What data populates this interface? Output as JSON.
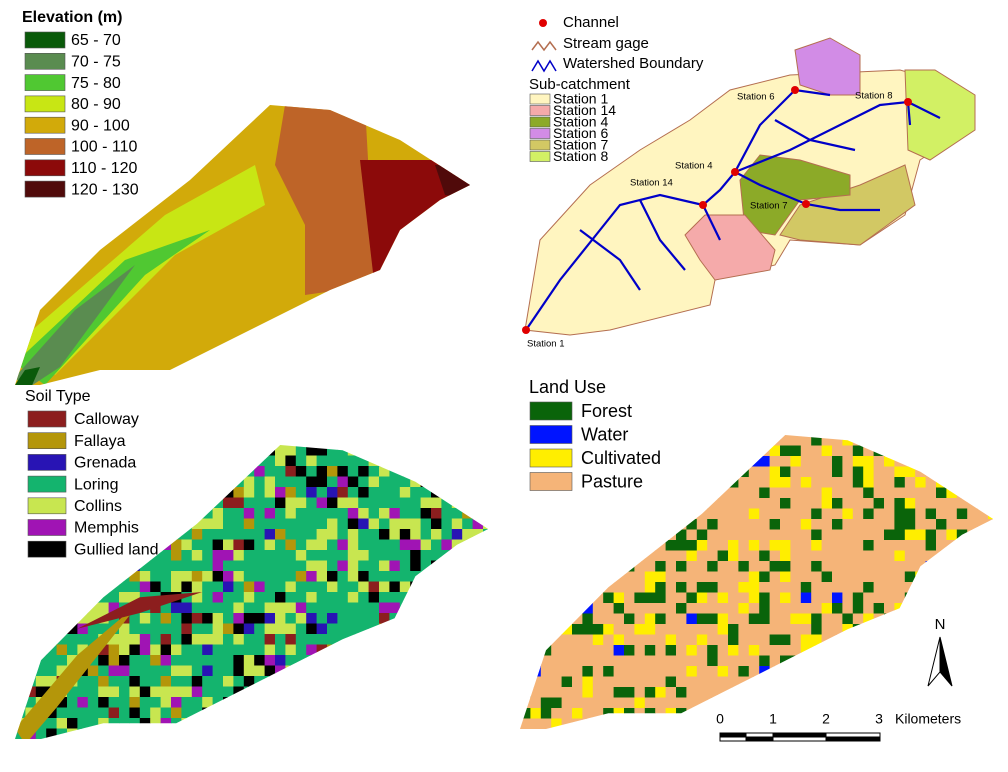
{
  "elevation": {
    "title": "Elevation (m)",
    "items": [
      {
        "label": "65 - 70",
        "color": "#0a5a0a"
      },
      {
        "label": "70 - 75",
        "color": "#5a8c50"
      },
      {
        "label": "75 - 80",
        "color": "#50c832"
      },
      {
        "label": "80 - 90",
        "color": "#c8e614"
      },
      {
        "label": "90 - 100",
        "color": "#d2aa0a"
      },
      {
        "label": "100 - 110",
        "color": "#be6428"
      },
      {
        "label": "110 - 120",
        "color": "#8c0a0a"
      },
      {
        "label": "120 - 130",
        "color": "#500a0a"
      }
    ]
  },
  "watershed": {
    "legend": [
      {
        "label": "Channel",
        "color": "#e00000"
      },
      {
        "label": "Stream gage",
        "color": "#b46e50"
      },
      {
        "label": "Watershed Boundary",
        "color": "#0000c8"
      }
    ],
    "subtitle": "Sub-catchment",
    "items": [
      {
        "label": "Station 1",
        "color": "#fff5c0"
      },
      {
        "label": "Station 14",
        "color": "#f5aaaa"
      },
      {
        "label": "Station 4",
        "color": "#8caa28"
      },
      {
        "label": "Station 6",
        "color": "#d28ce6"
      },
      {
        "label": "Station 7",
        "color": "#d2c864"
      },
      {
        "label": "Station 8",
        "color": "#d2f064"
      }
    ],
    "map_labels": [
      "Station 6",
      "Station 8",
      "Station 4",
      "Station 14",
      "Station 7",
      "Station 1"
    ]
  },
  "soil": {
    "title": "Soil Type",
    "items": [
      {
        "label": "Calloway",
        "color": "#8c1e1e"
      },
      {
        "label": "Fallaya",
        "color": "#b4960a"
      },
      {
        "label": "Grenada",
        "color": "#2814b4"
      },
      {
        "label": "Loring",
        "color": "#14b46e"
      },
      {
        "label": "Collins",
        "color": "#c8e650"
      },
      {
        "label": "Memphis",
        "color": "#a014b4"
      },
      {
        "label": "Gullied land",
        "color": "#000000"
      }
    ]
  },
  "land_use": {
    "title": "Land Use",
    "items": [
      {
        "label": "Forest",
        "color": "#0a640a"
      },
      {
        "label": "Water",
        "color": "#0014ff"
      },
      {
        "label": "Cultivated",
        "color": "#ffee00"
      },
      {
        "label": "Pasture",
        "color": "#f5b478"
      }
    ]
  },
  "scale": {
    "labels": [
      "0",
      "1",
      "2",
      "3"
    ],
    "unit": "Kilometers"
  },
  "north": "N"
}
